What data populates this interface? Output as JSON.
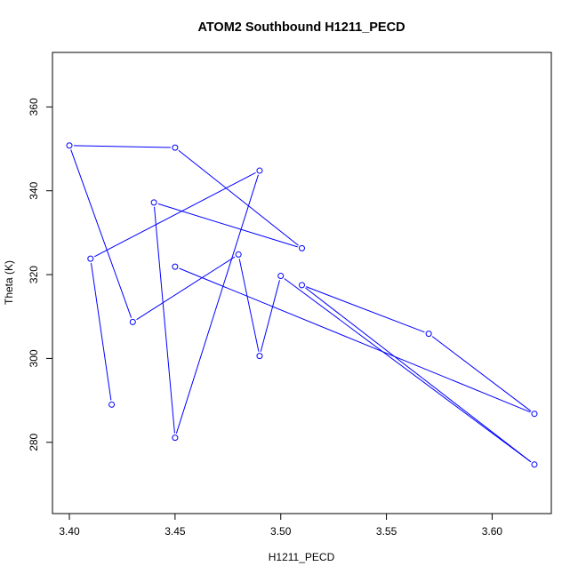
{
  "chart_data": {
    "type": "line",
    "title": "ATOM2 Southbound H1211_PECD",
    "xlabel": "H1211_PECD",
    "ylabel": "Theta (K)",
    "xlim": [
      3.392,
      3.628
    ],
    "ylim": [
      263,
      373
    ],
    "x_ticks": [
      3.4,
      3.45,
      3.5,
      3.55,
      3.6
    ],
    "x_tick_labels": [
      "3.40",
      "3.45",
      "3.50",
      "3.55",
      "3.60"
    ],
    "y_ticks": [
      280,
      300,
      320,
      340,
      360
    ],
    "y_tick_labels": [
      "280",
      "300",
      "320",
      "340",
      "360"
    ],
    "grid": false,
    "legend": "none",
    "series": [
      {
        "color": "#0000ff",
        "marker": "open-circle",
        "x": [
          3.42,
          3.41,
          3.49,
          3.45,
          3.44,
          3.51,
          3.45,
          3.4,
          3.43,
          3.48,
          3.49,
          3.5,
          3.62,
          3.51,
          3.57,
          3.62,
          3.45
        ],
        "y": [
          289.0,
          323.8,
          344.8,
          281.1,
          337.2,
          326.3,
          350.3,
          350.8,
          308.7,
          324.8,
          300.6,
          319.7,
          274.7,
          317.5,
          305.9,
          286.8,
          321.9
        ]
      }
    ]
  }
}
